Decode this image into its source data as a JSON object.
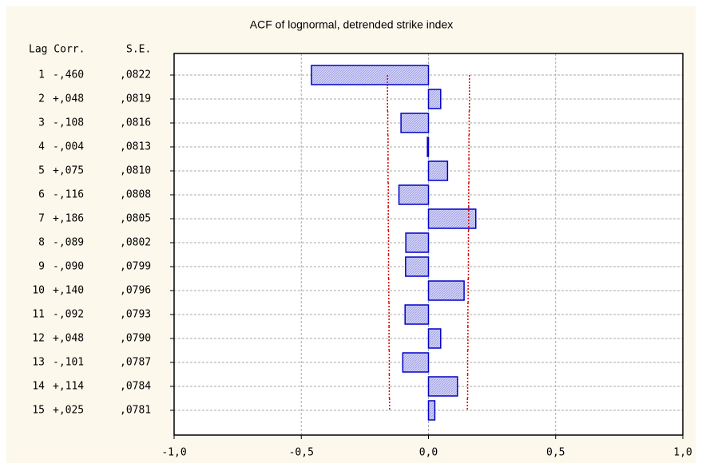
{
  "chart_data": {
    "type": "acf",
    "title": "ACF of lognormal, detrended strike index",
    "column_headers": [
      "Lag Corr.",
      "S.E."
    ],
    "categories": [
      "1",
      "2",
      "3",
      "4",
      "5",
      "6",
      "7",
      "8",
      "9",
      "10",
      "11",
      "12",
      "13",
      "14",
      "15"
    ],
    "values": [
      -0.46,
      0.048,
      -0.108,
      -0.004,
      0.075,
      -0.116,
      0.186,
      -0.089,
      -0.09,
      0.14,
      -0.092,
      0.048,
      -0.101,
      0.114,
      0.025
    ],
    "value_labels": [
      "-,460",
      "+,048",
      "-,108",
      "-,004",
      "+,075",
      "-,116",
      "+,186",
      "-,089",
      "-,090",
      "+,140",
      "-,092",
      "+,048",
      "-,101",
      "+,114",
      "+,025"
    ],
    "se": [
      0.0822,
      0.0819,
      0.0816,
      0.0813,
      0.081,
      0.0808,
      0.0805,
      0.0802,
      0.0799,
      0.0796,
      0.0793,
      0.079,
      0.0787,
      0.0784,
      0.0781
    ],
    "se_labels": [
      ",0822",
      ",0819",
      ",0816",
      ",0813",
      ",0810",
      ",0808",
      ",0805",
      ",0802",
      ",0799",
      ",0796",
      ",0793",
      ",0790",
      ",0787",
      ",0784",
      ",0781"
    ],
    "limits": [
      0.161,
      0.161,
      0.16,
      0.159,
      0.159,
      0.158,
      0.158,
      0.157,
      0.157,
      0.156,
      0.155,
      0.155,
      0.154,
      0.154,
      0.153
    ],
    "color": "#c4c4f4",
    "edge_color": "#0000c8",
    "limit_color": "#e00000",
    "xlim": [
      -1,
      1
    ],
    "xticks": [
      {
        "value": -1,
        "label": "-1,0"
      },
      {
        "value": -0.5,
        "label": "-0,5"
      },
      {
        "value": 0,
        "label": "0,0"
      },
      {
        "value": 0.5,
        "label": "0,5"
      },
      {
        "value": 1,
        "label": "1,0"
      }
    ],
    "grid": true
  }
}
